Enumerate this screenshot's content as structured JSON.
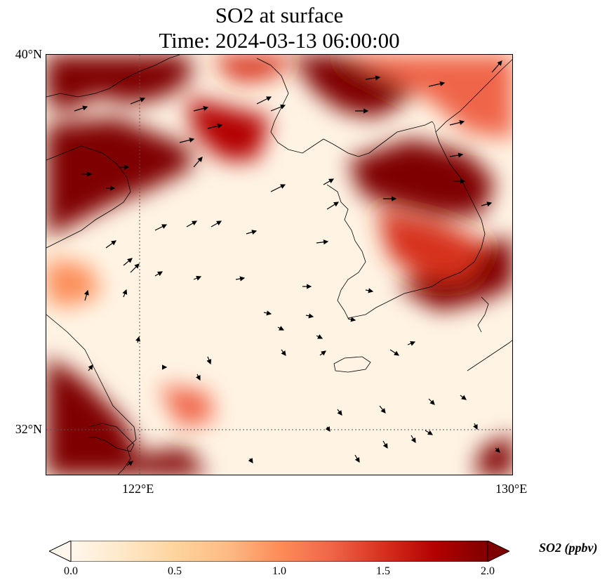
{
  "title_line1": "SO2 at surface",
  "title_line2": "Time: 2024-03-13 06:00:00",
  "map": {
    "lat_labels": [
      "40°N",
      "32°N"
    ],
    "lon_labels": [
      "122°E",
      "130°E"
    ],
    "lat_range": [
      31,
      40
    ],
    "lon_range": [
      120,
      130
    ],
    "gridlines": "dotted",
    "field": "SO2 surface concentration",
    "wind_vectors": true
  },
  "colorbar": {
    "label": "SO2 (ppbv)",
    "ticks": [
      "0.0",
      "0.5",
      "1.0",
      "1.5",
      "2.0"
    ],
    "vmin": 0.0,
    "vmax": 2.0,
    "colormap": "OrRd",
    "extend": "both",
    "colors": [
      "#fff7ec",
      "#fee8c8",
      "#fdd49e",
      "#fdbb84",
      "#fc8d59",
      "#ef6548",
      "#d7301f",
      "#b30000",
      "#7f0000"
    ]
  }
}
